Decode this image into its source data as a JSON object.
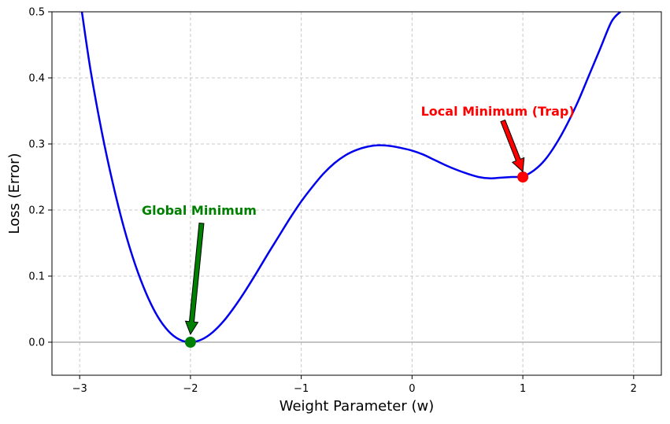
{
  "chart_data": {
    "type": "line",
    "title": "",
    "xlabel": "Weight Parameter (w)",
    "ylabel": "Loss (Error)",
    "xlim": [
      -3.25,
      2.25
    ],
    "ylim": [
      -0.05,
      0.5
    ],
    "x_ticks": [
      -3,
      -2,
      -1,
      0,
      1,
      2
    ],
    "x_tick_labels": [
      "−3",
      "−2",
      "−1",
      "0",
      "1",
      "2"
    ],
    "y_ticks": [
      0.0,
      0.1,
      0.2,
      0.3,
      0.4,
      0.5
    ],
    "y_tick_labels": [
      "0.0",
      "0.1",
      "0.2",
      "0.3",
      "0.4",
      "0.5"
    ],
    "grid": true,
    "grid_style": "dashed",
    "baseline_y": 0,
    "series": [
      {
        "color": "#0000ee",
        "x": [
          -2.98,
          -2.9,
          -2.8,
          -2.7,
          -2.6,
          -2.5,
          -2.4,
          -2.3,
          -2.2,
          -2.1,
          -2.0,
          -1.9,
          -1.8,
          -1.7,
          -1.6,
          -1.5,
          -1.4,
          -1.3,
          -1.2,
          -1.1,
          -1.0,
          -0.9,
          -0.8,
          -0.7,
          -0.6,
          -0.5,
          -0.4,
          -0.3,
          -0.2,
          -0.1,
          0.0,
          0.1,
          0.2,
          0.3,
          0.4,
          0.5,
          0.6,
          0.7,
          0.8,
          0.9,
          1.0,
          1.1,
          1.2,
          1.3,
          1.4,
          1.5,
          1.6,
          1.7,
          1.8,
          1.88
        ],
        "y": [
          0.5,
          0.41,
          0.318,
          0.24,
          0.173,
          0.118,
          0.074,
          0.04,
          0.017,
          0.004,
          0.0,
          0.004,
          0.015,
          0.032,
          0.054,
          0.079,
          0.106,
          0.134,
          0.161,
          0.188,
          0.213,
          0.235,
          0.255,
          0.271,
          0.283,
          0.291,
          0.296,
          0.298,
          0.297,
          0.294,
          0.29,
          0.284,
          0.276,
          0.268,
          0.261,
          0.255,
          0.25,
          0.248,
          0.249,
          0.25,
          0.251,
          0.26,
          0.276,
          0.3,
          0.33,
          0.365,
          0.405,
          0.445,
          0.485,
          0.5
        ]
      }
    ],
    "points": [
      {
        "x": -2.0,
        "y": 0.0,
        "color": "#008000"
      },
      {
        "x": 1.0,
        "y": 0.25,
        "color": "#ff0000"
      }
    ],
    "annotations": [
      {
        "text": "Global Minimum",
        "text_x": -2.44,
        "text_y": 0.2,
        "arrow_from": [
          -1.9,
          0.18
        ],
        "arrow_to": [
          -2.0,
          0.012
        ],
        "color": "#008000"
      },
      {
        "text": "Local Minimum (Trap)",
        "text_x": 0.08,
        "text_y": 0.35,
        "arrow_from": [
          0.82,
          0.335
        ],
        "arrow_to": [
          1.0,
          0.258
        ],
        "color": "#ff0000"
      }
    ]
  }
}
